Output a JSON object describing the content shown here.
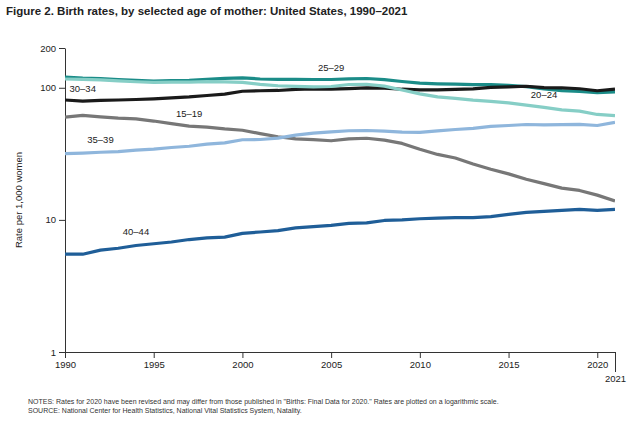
{
  "chart_data": {
    "type": "line",
    "title": "Figure 2. Birth rates, by selected age of mother: United States, 1990–2021",
    "y_label": "Rate per 1,000 women",
    "notes": "NOTES: Rates for 2020 have been revised and may differ from those published in \"Births: Final Data for 2020.\" Rates are plotted on a logarithmic scale.",
    "source": "SOURCE: National Center for Health Statistics, National Vital Statistics System, Natality.",
    "log": "y",
    "grid": false,
    "x": [
      1990,
      1991,
      1992,
      1993,
      1994,
      1995,
      1996,
      1997,
      1998,
      1999,
      2000,
      2001,
      2002,
      2003,
      2004,
      2005,
      2006,
      2007,
      2008,
      2009,
      2010,
      2011,
      2012,
      2013,
      2014,
      2015,
      2016,
      2017,
      2018,
      2019,
      2020,
      2021
    ],
    "xlim": [
      1990,
      2021
    ],
    "xticks": [
      1990,
      1995,
      2000,
      2005,
      2010,
      2015,
      2020,
      2021
    ],
    "ylim": [
      1,
      200
    ],
    "yticks": [
      1,
      10,
      100,
      200
    ],
    "series": [
      {
        "name": "25–29",
        "color": "#1b8c88",
        "values": [
          120.2,
          118.2,
          117.4,
          115.5,
          113.9,
          112.2,
          113.1,
          113.8,
          115.9,
          117.8,
          119.0,
          116.5,
          115.6,
          115.6,
          115.5,
          115.5,
          116.7,
          117.5,
          115.1,
          111.5,
          108.3,
          107.2,
          106.5,
          105.5,
          105.8,
          104.3,
          102.1,
          98.0,
          95.3,
          93.7,
          91.9,
          93.0
        ]
      },
      {
        "name": "30–34",
        "color": "#1a1a1a",
        "values": [
          80.8,
          79.2,
          80.2,
          80.8,
          81.5,
          82.5,
          83.9,
          85.3,
          87.4,
          89.6,
          94.1,
          94.9,
          95.4,
          97.3,
          98.0,
          97.5,
          98.4,
          99.9,
          99.3,
          97.5,
          96.5,
          96.5,
          97.3,
          98.0,
          100.8,
          101.5,
          102.7,
          100.3,
          99.7,
          98.3,
          94.9,
          97.6
        ]
      },
      {
        "name": "20–24",
        "color": "#86cec6",
        "values": [
          116.5,
          115.7,
          114.6,
          112.6,
          111.1,
          109.8,
          110.4,
          110.4,
          111.2,
          111.0,
          109.7,
          106.2,
          103.6,
          102.6,
          101.7,
          102.2,
          105.9,
          106.3,
          103.0,
          96.2,
          90.0,
          85.3,
          83.1,
          80.7,
          79.0,
          76.8,
          73.8,
          71.0,
          68.0,
          66.6,
          62.8,
          61.5
        ]
      },
      {
        "name": "15–19",
        "color": "#777777",
        "values": [
          59.9,
          61.8,
          60.3,
          59.0,
          58.2,
          56.0,
          53.5,
          51.3,
          50.3,
          48.8,
          47.7,
          45.0,
          42.6,
          41.1,
          40.5,
          39.7,
          41.1,
          41.5,
          40.2,
          37.9,
          34.2,
          31.3,
          29.4,
          26.5,
          24.2,
          22.3,
          20.3,
          18.8,
          17.4,
          16.7,
          15.4,
          13.9
        ]
      },
      {
        "name": "35–39",
        "color": "#8fb6dc",
        "values": [
          31.7,
          32.0,
          32.5,
          32.9,
          33.7,
          34.3,
          35.3,
          36.1,
          37.4,
          38.3,
          40.4,
          40.6,
          41.6,
          43.8,
          45.4,
          46.3,
          47.3,
          47.5,
          46.9,
          46.1,
          45.9,
          47.2,
          48.3,
          49.3,
          51.0,
          51.8,
          52.7,
          52.3,
          52.6,
          52.8,
          51.8,
          54.7
        ]
      },
      {
        "name": "40–44",
        "color": "#1f5e98",
        "values": [
          5.5,
          5.5,
          5.9,
          6.1,
          6.4,
          6.6,
          6.8,
          7.1,
          7.3,
          7.4,
          7.9,
          8.1,
          8.3,
          8.7,
          8.9,
          9.1,
          9.4,
          9.5,
          9.9,
          10.0,
          10.2,
          10.3,
          10.4,
          10.4,
          10.6,
          11.0,
          11.4,
          11.6,
          11.8,
          12.0,
          11.8,
          12.0
        ]
      }
    ]
  }
}
